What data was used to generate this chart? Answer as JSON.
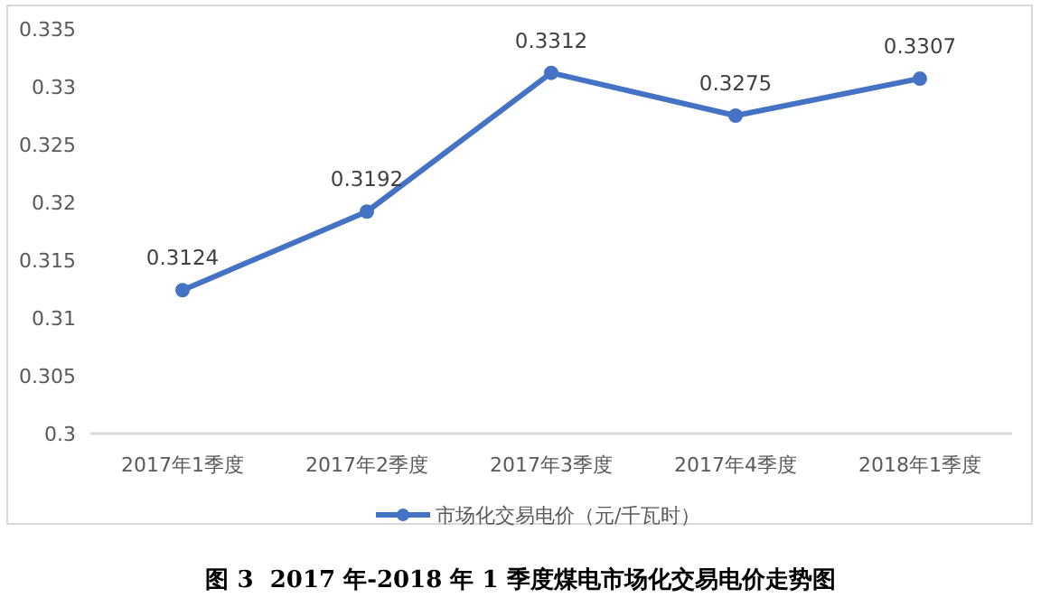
{
  "chart_data": {
    "type": "line",
    "title": "图 3  2017 年-2018 年 1 季度煤电市场化交易电价走势图",
    "categories": [
      "2017年1季度",
      "2017年2季度",
      "2017年3季度",
      "2017年4季度",
      "2018年1季度"
    ],
    "series": [
      {
        "name": "市场化交易电价（元/千瓦时）",
        "color": "#4472c4",
        "values": [
          0.3124,
          0.3192,
          0.3312,
          0.3275,
          0.3307
        ]
      }
    ],
    "ylim": [
      0.3,
      0.335
    ],
    "yticks": [
      0.3,
      0.305,
      0.31,
      0.315,
      0.32,
      0.325,
      0.33,
      0.335
    ],
    "data_labels": true,
    "marker": "circle",
    "line_style": "solid",
    "legend": "bottom",
    "grid": false
  }
}
